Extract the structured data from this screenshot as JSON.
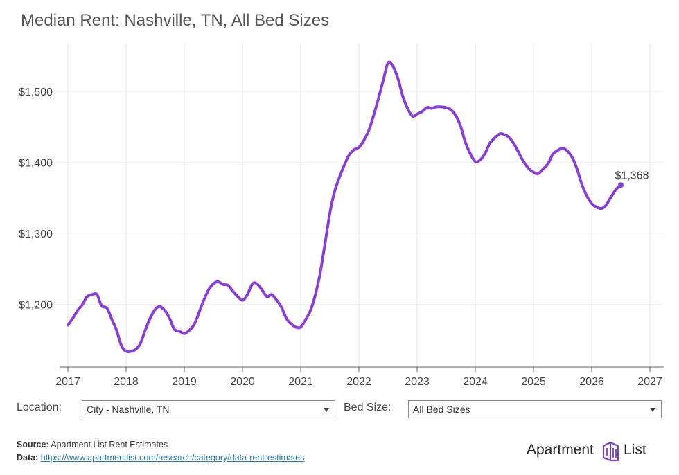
{
  "title": "Median Rent: Nashville, TN, All Bed Sizes",
  "chart_data": {
    "type": "line",
    "title": "Median Rent: Nashville, TN, All Bed Sizes",
    "xlabel": "",
    "ylabel": "",
    "x_ticks": [
      "2017",
      "2018",
      "2019",
      "2020",
      "2021",
      "2022",
      "2023",
      "2024",
      "2025",
      "2026",
      "2027"
    ],
    "y_ticks": [
      "$1,200",
      "$1,300",
      "$1,400",
      "$1,500"
    ],
    "y_tick_values": [
      1200,
      1300,
      1400,
      1500
    ],
    "xlim": [
      2017,
      2027
    ],
    "ylim": [
      1110,
      1570
    ],
    "grid": true,
    "line_color": "#8a3ed9",
    "end_label": "$1,368",
    "series": [
      {
        "x": [
          2017.0,
          2017.08,
          2017.17,
          2017.25,
          2017.33,
          2017.42,
          2017.5,
          2017.58,
          2017.67,
          2017.75,
          2017.83,
          2017.92,
          2018.0,
          2018.08,
          2018.17,
          2018.25,
          2018.33,
          2018.42,
          2018.5,
          2018.58,
          2018.67,
          2018.75,
          2018.83,
          2018.92,
          2019.0,
          2019.08,
          2019.17,
          2019.25,
          2019.33,
          2019.42,
          2019.5,
          2019.58,
          2019.67,
          2019.75,
          2019.83,
          2019.92,
          2020.0,
          2020.08,
          2020.17,
          2020.25,
          2020.33,
          2020.42,
          2020.5,
          2020.58,
          2020.67,
          2020.75,
          2020.83,
          2020.92,
          2021.0,
          2021.08,
          2021.17,
          2021.25,
          2021.33,
          2021.42,
          2021.5,
          2021.58,
          2021.67,
          2021.75,
          2021.83,
          2021.92,
          2022.0,
          2022.08,
          2022.17,
          2022.25,
          2022.33,
          2022.42,
          2022.5,
          2022.58,
          2022.67,
          2022.75,
          2022.83,
          2022.92,
          2023.0,
          2023.08,
          2023.17,
          2023.25,
          2023.33,
          2023.42,
          2023.5,
          2023.58,
          2023.67,
          2023.75,
          2023.83,
          2023.92,
          2024.0,
          2024.08,
          2024.17,
          2024.25,
          2024.33,
          2024.42,
          2024.5,
          2024.58,
          2024.67,
          2024.75,
          2024.83,
          2024.92,
          2025.0,
          2025.08,
          2025.17,
          2025.25,
          2025.33,
          2025.42,
          2025.5,
          2025.58,
          2025.67,
          2025.75,
          2025.83,
          2025.92,
          2026.0,
          2026.08,
          2026.17,
          2026.25,
          2026.33,
          2026.42,
          2026.5
        ],
        "y": [
          1171,
          1180,
          1192,
          1200,
          1211,
          1214,
          1214,
          1198,
          1195,
          1180,
          1165,
          1142,
          1134,
          1134,
          1137,
          1146,
          1164,
          1182,
          1193,
          1197,
          1191,
          1180,
          1165,
          1162,
          1159,
          1163,
          1172,
          1188,
          1205,
          1221,
          1229,
          1232,
          1228,
          1227,
          1219,
          1211,
          1206,
          1213,
          1229,
          1229,
          1221,
          1211,
          1214,
          1207,
          1196,
          1181,
          1173,
          1168,
          1168,
          1178,
          1192,
          1213,
          1242,
          1287,
          1328,
          1358,
          1380,
          1396,
          1410,
          1418,
          1421,
          1430,
          1445,
          1465,
          1488,
          1516,
          1540,
          1536,
          1518,
          1494,
          1477,
          1465,
          1468,
          1471,
          1477,
          1476,
          1478,
          1478,
          1477,
          1474,
          1465,
          1450,
          1428,
          1411,
          1401,
          1403,
          1413,
          1427,
          1434,
          1440,
          1439,
          1435,
          1425,
          1413,
          1401,
          1391,
          1386,
          1384,
          1391,
          1398,
          1411,
          1417,
          1420,
          1416,
          1406,
          1390,
          1369,
          1352,
          1342,
          1337,
          1335,
          1340,
          1351,
          1362,
          1368
        ]
      }
    ]
  },
  "controls": {
    "location_label": "Location:",
    "location_value": "City - Nashville, TN",
    "bed_label": "Bed Size:",
    "bed_value": "All Bed Sizes"
  },
  "footer": {
    "source_label": "Source:",
    "source_text": "Apartment List Rent Estimates",
    "data_label": "Data:",
    "data_link": "https://www.apartmentlist.com/research/category/data-rent-estimates"
  },
  "logo": {
    "text_left": "Apartment",
    "text_right": "List",
    "color": "#7b3fc4"
  }
}
